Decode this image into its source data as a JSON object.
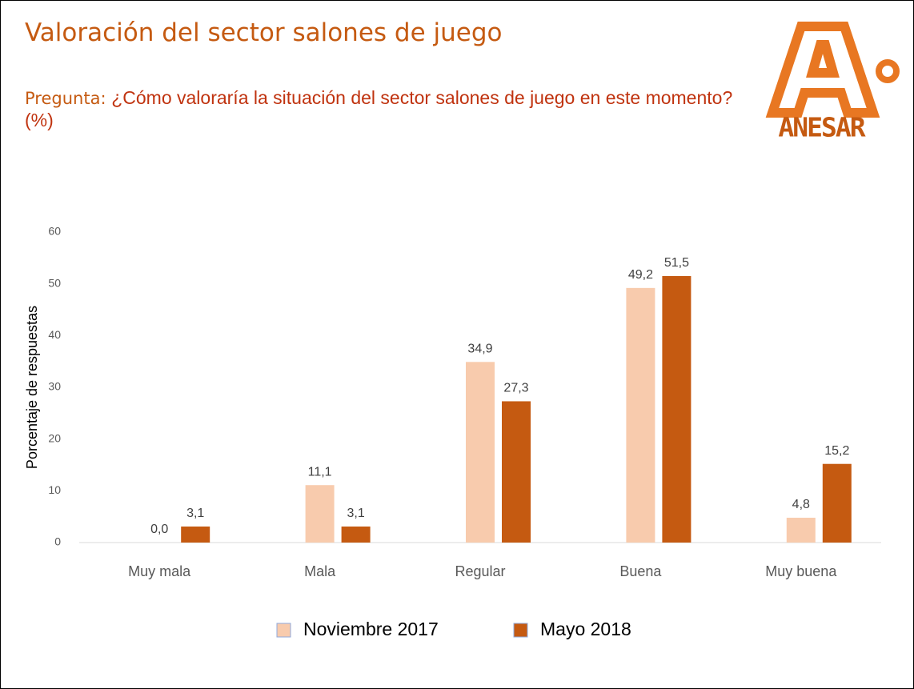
{
  "title": "Valoración del sector salones de juego",
  "subtitle": {
    "label": "Pregunta:",
    "question": "¿Cómo valoraría la situación del sector salones de juego en este momento?",
    "unit": "(%)"
  },
  "logo": {
    "text": "ANESAR"
  },
  "chart_data": {
    "type": "bar",
    "categories": [
      "Muy mala",
      "Mala",
      "Regular",
      "Buena",
      "Muy buena"
    ],
    "series": [
      {
        "name": "Noviembre 2017",
        "color": "#f8cbad",
        "values": [
          0.0,
          11.1,
          34.9,
          49.2,
          4.8
        ],
        "value_labels": [
          "0,0",
          "11,1",
          "34,9",
          "49,2",
          "4,8"
        ]
      },
      {
        "name": "Mayo 2018",
        "color": "#c55a11",
        "values": [
          3.1,
          3.1,
          27.3,
          51.5,
          15.2
        ],
        "value_labels": [
          "3,1",
          "3,1",
          "27,3",
          "51,5",
          "15,2"
        ]
      }
    ],
    "ylabel": "Porcentaje de respuestas",
    "ylim": [
      0,
      60
    ],
    "yticks": [
      0,
      10,
      20,
      30,
      40,
      50,
      60
    ],
    "grid": false,
    "legend": "bottom"
  }
}
